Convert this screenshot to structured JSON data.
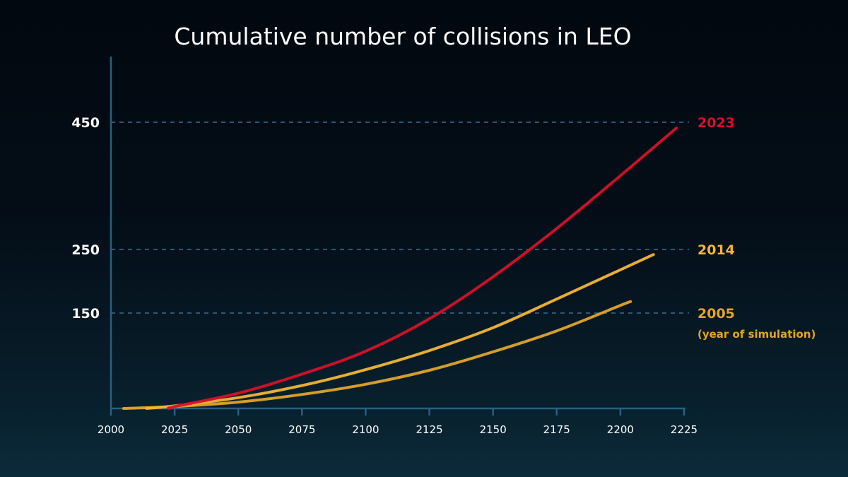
{
  "chart_data": {
    "type": "line",
    "title": "Cumulative number of collisions in LEO",
    "xlabel": "",
    "ylabel": "",
    "xlim": [
      2000,
      2225
    ],
    "ylim": [
      0,
      450
    ],
    "x_ticks": [
      "2000",
      "2025",
      "2050",
      "2075",
      "2100",
      "2125",
      "2150",
      "2175",
      "2200",
      "2225"
    ],
    "y_ticks": [
      "150",
      "250",
      "450"
    ],
    "grid": "dashed horizontal lines at y tick values",
    "legend": "series labels at right end of each reference line",
    "series_note": "(year of simulation)",
    "series": [
      {
        "name": "2005",
        "color": "#e0a42a",
        "x": [
          2005,
          2025,
          2050,
          2075,
          2100,
          2125,
          2150,
          2175,
          2200,
          2204
        ],
        "y": [
          0,
          3,
          10,
          22,
          38,
          60,
          89,
          122,
          162,
          168
        ]
      },
      {
        "name": "2014",
        "color": "#f2b634",
        "x": [
          2014,
          2025,
          2050,
          2075,
          2100,
          2125,
          2150,
          2175,
          2200,
          2213
        ],
        "y": [
          0,
          4,
          17,
          36,
          61,
          91,
          127,
          172,
          218,
          242
        ]
      },
      {
        "name": "2023",
        "color": "#d8102a",
        "x": [
          2023,
          2025,
          2050,
          2075,
          2100,
          2125,
          2150,
          2175,
          2200,
          2222
        ],
        "y": [
          0,
          3,
          24,
          54,
          90,
          141,
          207,
          283,
          366,
          441
        ]
      }
    ]
  }
}
